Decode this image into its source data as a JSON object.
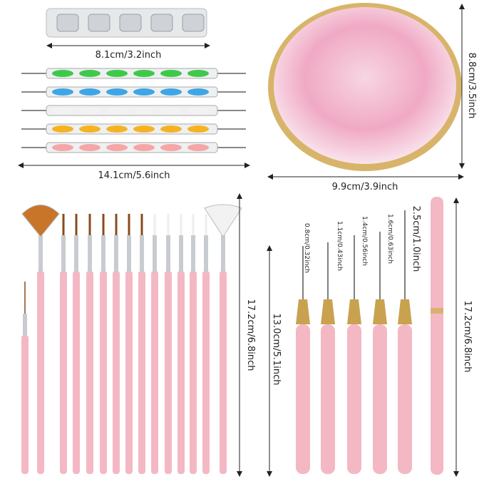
{
  "labels": {
    "tray_width": "8.1cm/3.2inch",
    "dotting_length": "14.1cm/5.6inch",
    "palette_width": "9.9cm/3.9inch",
    "palette_height": "8.8cm/3.5inch",
    "brush_set_length": "17.2cm/6.8inch",
    "liner_length": "13.0cm/5.1inch",
    "pen_length": "17.2cm/6.8inch",
    "tip_1": "0.8cm/0.32inch",
    "tip_2": "1.1cm/0.43inch",
    "tip_3": "1.4cm/0.56inch",
    "tip_4": "1.6cm/0.63inch",
    "tip_5": "2.5cm/1.0inch"
  },
  "colors": {
    "handle_pink": "#f4b8c4",
    "palette_pink": "#f3c3d6",
    "gold": "#c9a24f",
    "dotting": [
      "#3fc94a",
      "#3ea6e6",
      "#f2f2f2",
      "#f5b324",
      "#f5a6a6"
    ]
  }
}
